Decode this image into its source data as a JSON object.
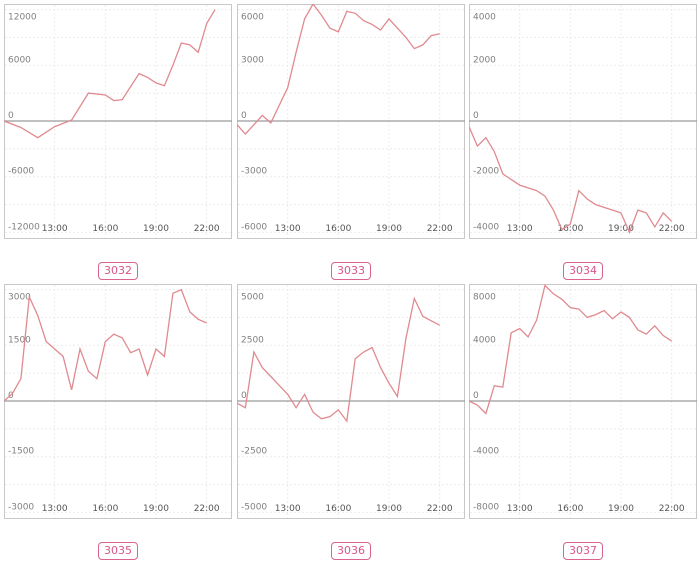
{
  "chart_data": [
    {
      "type": "line",
      "label": "3032",
      "x": [
        "10:00",
        "11:00",
        "12:00",
        "13:00",
        "14:00",
        "15:00",
        "16:00",
        "16:30",
        "17:00",
        "18:00",
        "18:30",
        "19:00",
        "19:30",
        "20:00",
        "20:30",
        "21:00",
        "21:30",
        "22:00",
        "22:30"
      ],
      "values": [
        0,
        -700,
        -1800,
        -600,
        100,
        3000,
        2800,
        2200,
        2300,
        5100,
        4700,
        4100,
        3800,
        6000,
        8400,
        8200,
        7400,
        10500,
        12000
      ],
      "yticks": [
        12000,
        6000,
        0,
        -6000,
        -12000
      ],
      "xticks": [
        "13:00",
        "16:00",
        "19:00",
        "22:00"
      ],
      "ylim": [
        -12600,
        12600
      ],
      "grid": true
    },
    {
      "type": "line",
      "label": "3033",
      "x": [
        "10:00",
        "10:30",
        "11:00",
        "11:30",
        "12:00",
        "13:00",
        "13:30",
        "14:00",
        "14:30",
        "15:00",
        "15:30",
        "16:00",
        "16:30",
        "17:00",
        "17:30",
        "18:00",
        "18:30",
        "19:00",
        "19:30",
        "20:00",
        "20:30",
        "21:00",
        "21:30",
        "22:00"
      ],
      "values": [
        -200,
        -700,
        -200,
        300,
        -100,
        1800,
        3700,
        5500,
        6300,
        5700,
        5000,
        4800,
        5900,
        5800,
        5400,
        5200,
        4900,
        5500,
        5000,
        4500,
        3900,
        4100,
        4600,
        4700
      ],
      "yticks": [
        6000,
        3000,
        0,
        -3000,
        -6000
      ],
      "xticks": [
        "13:00",
        "16:00",
        "19:00",
        "22:00"
      ],
      "ylim": [
        -6300,
        6300
      ],
      "grid": true
    },
    {
      "type": "line",
      "label": "3034",
      "x": [
        "10:00",
        "10:30",
        "11:00",
        "11:30",
        "12:00",
        "13:00",
        "13:30",
        "14:00",
        "14:30",
        "15:00",
        "15:30",
        "16:00",
        "16:30",
        "17:00",
        "17:30",
        "18:00",
        "18:30",
        "19:00",
        "19:30",
        "20:00",
        "20:30",
        "21:00",
        "21:30",
        "22:00"
      ],
      "values": [
        -200,
        -900,
        -600,
        -1100,
        -1900,
        -2300,
        -2400,
        -2500,
        -2700,
        -3200,
        -3900,
        -3700,
        -2500,
        -2800,
        -3000,
        -3100,
        -3200,
        -3300,
        -4000,
        -3200,
        -3300,
        -3800,
        -3300,
        -3600
      ],
      "yticks": [
        4000,
        2000,
        0,
        -2000,
        -4000
      ],
      "xticks": [
        "13:00",
        "16:00",
        "19:00",
        "22:00"
      ],
      "ylim": [
        -4200,
        4200
      ],
      "grid": true
    },
    {
      "type": "line",
      "label": "3035",
      "x": [
        "10:00",
        "10:30",
        "11:00",
        "11:30",
        "12:00",
        "12:30",
        "13:00",
        "13:30",
        "14:00",
        "14:30",
        "15:00",
        "15:30",
        "16:00",
        "16:30",
        "17:00",
        "17:30",
        "18:00",
        "18:30",
        "19:00",
        "19:30",
        "20:00",
        "20:30",
        "21:00",
        "21:30",
        "22:00"
      ],
      "values": [
        0,
        200,
        600,
        2800,
        2300,
        1600,
        1400,
        1200,
        300,
        1400,
        800,
        600,
        1600,
        1800,
        1700,
        1300,
        1400,
        700,
        1400,
        1200,
        2900,
        3000,
        2400,
        2200,
        2100
      ],
      "yticks": [
        3000,
        1500,
        0,
        -1500,
        -3000
      ],
      "xticks": [
        "13:00",
        "16:00",
        "19:00",
        "22:00"
      ],
      "ylim": [
        -3150,
        3150
      ],
      "grid": true
    },
    {
      "type": "line",
      "label": "3036",
      "x": [
        "10:00",
        "10:30",
        "11:00",
        "11:30",
        "12:00",
        "12:30",
        "13:00",
        "13:30",
        "14:00",
        "14:30",
        "15:00",
        "15:30",
        "16:00",
        "16:30",
        "17:00",
        "17:30",
        "18:00",
        "18:30",
        "19:00",
        "19:30",
        "20:00",
        "20:30",
        "21:00",
        "21:30",
        "22:00"
      ],
      "values": [
        -100,
        -300,
        2200,
        1500,
        1100,
        700,
        300,
        -300,
        300,
        -500,
        -800,
        -700,
        -400,
        -900,
        1900,
        2200,
        2400,
        1500,
        800,
        200,
        2800,
        4600,
        3800,
        3600,
        3400
      ],
      "yticks": [
        5000,
        2500,
        0,
        -2500,
        -5000
      ],
      "xticks": [
        "13:00",
        "16:00",
        "19:00",
        "22:00"
      ],
      "ylim": [
        -5250,
        5250
      ],
      "grid": true
    },
    {
      "type": "line",
      "label": "3037",
      "x": [
        "10:00",
        "10:30",
        "11:00",
        "11:30",
        "12:00",
        "12:30",
        "13:00",
        "13:30",
        "14:00",
        "14:30",
        "15:00",
        "15:30",
        "16:00",
        "16:30",
        "17:00",
        "17:30",
        "18:00",
        "18:30",
        "19:00",
        "19:30",
        "20:00",
        "20:30",
        "21:00",
        "21:30",
        "22:00"
      ],
      "values": [
        0,
        -300,
        -900,
        1100,
        1000,
        4900,
        5200,
        4600,
        5800,
        8300,
        7700,
        7300,
        6700,
        6600,
        6000,
        6200,
        6500,
        5900,
        6400,
        6000,
        5100,
        4800,
        5400,
        4700,
        4300
      ],
      "yticks": [
        8000,
        4000,
        0,
        -4000,
        -8000
      ],
      "xticks": [
        "13:00",
        "16:00",
        "19:00",
        "22:00"
      ],
      "ylim": [
        -8400,
        8400
      ],
      "grid": true
    }
  ]
}
